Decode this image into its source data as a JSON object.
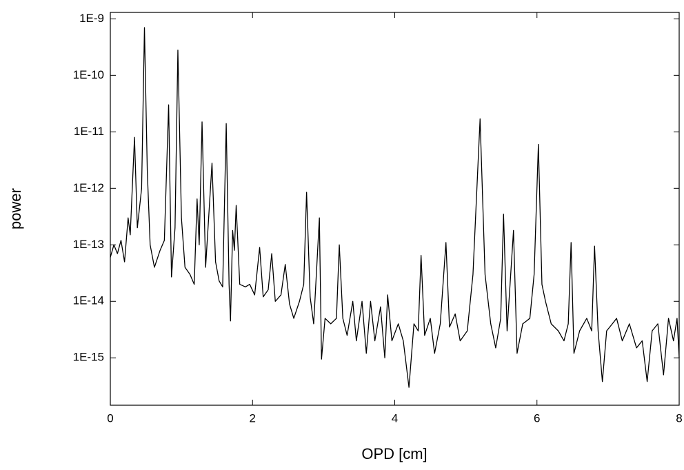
{
  "chart_data": {
    "type": "line",
    "x_label": "OPD [cm]",
    "y_label": "power",
    "log_y": true,
    "color": "#000000",
    "xlim": [
      0,
      8
    ],
    "xticks": [
      0,
      2,
      4,
      6,
      8
    ],
    "ylim": [
      1.45e-16,
      1.3e-09
    ],
    "yticks": [
      {
        "value": 1e-15,
        "label": "1E-15"
      },
      {
        "value": 1e-14,
        "label": "1E-14"
      },
      {
        "value": 1e-13,
        "label": "1E-13"
      },
      {
        "value": 1e-12,
        "label": "1E-12"
      },
      {
        "value": 1e-11,
        "label": "1E-11"
      },
      {
        "value": 1e-10,
        "label": "1E-10"
      },
      {
        "value": 1e-09,
        "label": "1E-9"
      }
    ],
    "x": [
      0,
      0.05,
      0.1,
      0.15,
      0.2,
      0.25,
      0.28,
      0.34,
      0.38,
      0.44,
      0.48,
      0.52,
      0.56,
      0.62,
      0.7,
      0.76,
      0.82,
      0.86,
      0.91,
      0.95,
      1.0,
      1.05,
      1.12,
      1.18,
      1.22,
      1.25,
      1.29,
      1.34,
      1.43,
      1.48,
      1.53,
      1.58,
      1.63,
      1.67,
      1.69,
      1.72,
      1.745,
      1.77,
      1.82,
      1.9,
      1.96,
      2.03,
      2.1,
      2.15,
      2.22,
      2.27,
      2.32,
      2.4,
      2.46,
      2.52,
      2.58,
      2.66,
      2.72,
      2.76,
      2.81,
      2.86,
      2.94,
      2.97,
      3.02,
      3.1,
      3.18,
      3.22,
      3.27,
      3.33,
      3.41,
      3.46,
      3.54,
      3.6,
      3.66,
      3.72,
      3.8,
      3.86,
      3.9,
      3.96,
      4.05,
      4.12,
      4.2,
      4.27,
      4.33,
      4.37,
      4.42,
      4.5,
      4.56,
      4.64,
      4.72,
      4.77,
      4.85,
      4.92,
      5.02,
      5.1,
      5.2,
      5.27,
      5.35,
      5.42,
      5.49,
      5.53,
      5.58,
      5.67,
      5.72,
      5.8,
      5.9,
      5.96,
      6.02,
      6.07,
      6.12,
      6.2,
      6.3,
      6.38,
      6.44,
      6.48,
      6.52,
      6.6,
      6.7,
      6.77,
      6.81,
      6.86,
      6.92,
      6.98,
      7.06,
      7.12,
      7.2,
      7.3,
      7.4,
      7.48,
      7.55,
      7.62,
      7.7,
      7.78,
      7.85,
      7.92,
      7.97,
      8.0
    ],
    "values": [
      6e-14,
      1e-13,
      7e-14,
      1.2e-13,
      5e-14,
      3e-13,
      1.5e-13,
      8e-12,
      2e-13,
      1e-12,
      7e-10,
      2e-12,
      1e-13,
      4e-14,
      8e-14,
      1.2e-13,
      3e-11,
      2.7e-14,
      2e-13,
      2.8e-10,
      3e-13,
      4e-14,
      3e-14,
      2e-14,
      6.5e-13,
      1e-13,
      1.5e-11,
      4e-14,
      2.8e-12,
      5e-14,
      2.3e-14,
      1.8e-14,
      1.4e-11,
      2e-14,
      4.5e-15,
      1.8e-13,
      8e-14,
      5e-13,
      2e-14,
      1.8e-14,
      2e-14,
      1.3e-14,
      9e-14,
      1.2e-14,
      1.6e-14,
      7e-14,
      1e-14,
      1.3e-14,
      4.5e-14,
      9e-15,
      5e-15,
      1e-14,
      2e-14,
      8.5e-13,
      1.2e-14,
      4e-15,
      3e-13,
      9.5e-16,
      5e-15,
      4e-15,
      5e-15,
      1e-13,
      5e-15,
      2.5e-15,
      1e-14,
      2e-15,
      1e-14,
      1.2e-15,
      1e-14,
      2e-15,
      8e-15,
      1e-15,
      1.3e-14,
      2e-15,
      4e-15,
      2e-15,
      3e-16,
      4e-15,
      3e-15,
      6.5e-14,
      2.5e-15,
      5e-15,
      1.2e-15,
      4e-15,
      1.1e-13,
      3.5e-15,
      6e-15,
      2e-15,
      3e-15,
      3e-14,
      1.7e-11,
      3e-14,
      4e-15,
      1.5e-15,
      5e-15,
      3.5e-13,
      3e-15,
      1.8e-13,
      1.2e-15,
      4e-15,
      5e-15,
      3e-14,
      6e-12,
      2e-14,
      1e-14,
      4e-15,
      3e-15,
      2e-15,
      4e-15,
      1.1e-13,
      1.2e-15,
      3e-15,
      5e-15,
      3e-15,
      9.5e-14,
      3e-15,
      3.8e-16,
      3e-15,
      4e-15,
      5e-15,
      2e-15,
      4e-15,
      1.5e-15,
      2e-15,
      3.8e-16,
      3e-15,
      4e-15,
      5e-16,
      5e-15,
      2e-15,
      5e-15,
      1e-15
    ]
  }
}
